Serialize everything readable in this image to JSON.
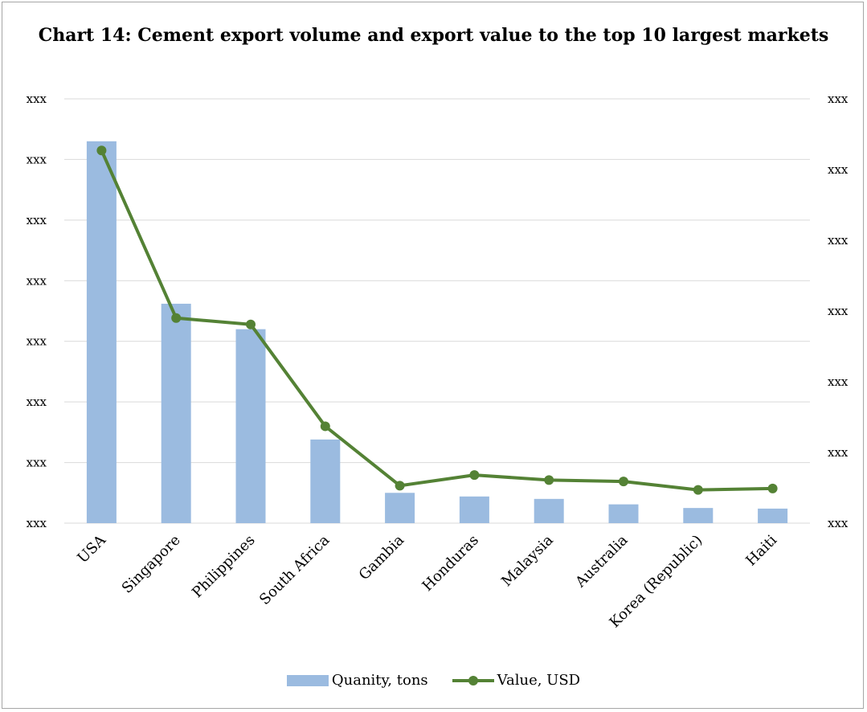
{
  "chart_data": {
    "type": "bar",
    "title": "Chart 14: Cement export volume and export value to the top 10 largest markets",
    "categories": [
      "USA",
      "Singapore",
      "Philippines",
      "South Africa",
      "Gambia",
      "Honduras",
      "Malaysia",
      "Australia",
      "Korea (Republic)",
      "Haiti"
    ],
    "series": [
      {
        "name": "Quanity, tons",
        "type": "bar",
        "axis": "left",
        "color": "#9bbbe0",
        "values": [
          6.3,
          3.62,
          3.2,
          1.38,
          0.5,
          0.44,
          0.4,
          0.31,
          0.25,
          0.24
        ]
      },
      {
        "name": "Value, USD",
        "type": "line",
        "axis": "right",
        "color": "#548235",
        "values": [
          5.27,
          2.9,
          2.81,
          1.37,
          0.53,
          0.68,
          0.61,
          0.59,
          0.47,
          0.49
        ]
      }
    ],
    "left_axis": {
      "ylim": [
        0,
        7
      ],
      "ticks": [
        "xxx",
        "xxx",
        "xxx",
        "xxx",
        "xxx",
        "xxx",
        "xxx",
        "xxx"
      ]
    },
    "right_axis": {
      "ylim": [
        0,
        6
      ],
      "ticks": [
        "xxx",
        "xxx",
        "xxx",
        "xxx",
        "xxx",
        "xxx",
        "xxx"
      ]
    },
    "grid": true,
    "legend_position": "bottom"
  }
}
